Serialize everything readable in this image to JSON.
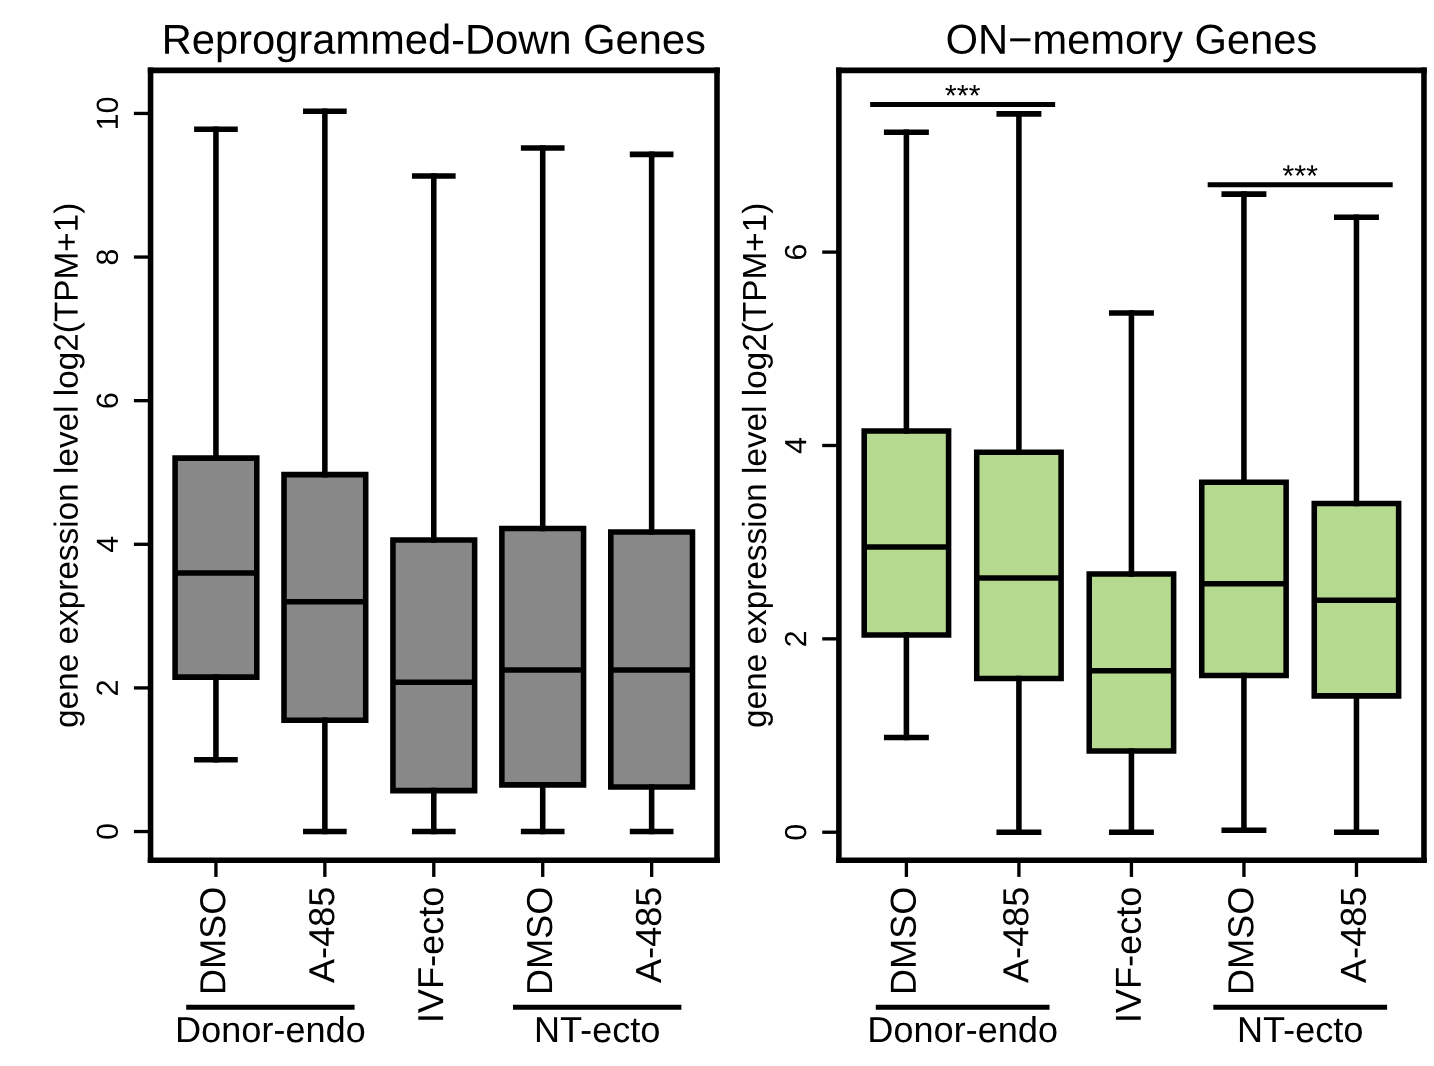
{
  "chart_data": [
    {
      "type": "box",
      "title": "Reprogrammed-Down Genes",
      "ylabel": "gene expression level log2(TPM+1)",
      "categories": [
        "DMSO",
        "A-485",
        "IVF-ecto",
        "DMSO",
        "A-485"
      ],
      "color": "#888888",
      "boxes": [
        {
          "low": 1.0,
          "q1": 2.15,
          "median": 3.6,
          "q3": 5.2,
          "high": 9.78
        },
        {
          "low": 0,
          "q1": 1.55,
          "median": 3.2,
          "q3": 4.97,
          "high": 10.03
        },
        {
          "low": 0,
          "q1": 0.57,
          "median": 2.08,
          "q3": 4.06,
          "high": 9.13
        },
        {
          "low": 0,
          "q1": 0.65,
          "median": 2.25,
          "q3": 4.22,
          "high": 9.52
        },
        {
          "low": 0,
          "q1": 0.62,
          "median": 2.25,
          "q3": 4.17,
          "high": 9.43
        }
      ],
      "ylim": [
        -0.4,
        10.6
      ],
      "yticks": [
        0,
        2,
        4,
        6,
        8,
        10
      ],
      "grid": false,
      "annotations": [
        "Donor-endo",
        "NT-ecto"
      ]
    },
    {
      "type": "box",
      "title": "ON−memory Genes",
      "ylabel": "gene expression level log2(TPM+1)",
      "categories": [
        "DMSO",
        "A-485",
        "IVF-ecto",
        "DMSO",
        "A-485"
      ],
      "color": "#b5d98f",
      "boxes": [
        {
          "low": 0.98,
          "q1": 2.04,
          "median": 2.95,
          "q3": 4.15,
          "high": 7.24
        },
        {
          "low": 0,
          "q1": 1.59,
          "median": 2.63,
          "q3": 3.93,
          "high": 7.43
        },
        {
          "low": 0,
          "q1": 0.84,
          "median": 1.67,
          "q3": 2.67,
          "high": 5.37
        },
        {
          "low": 0.02,
          "q1": 1.62,
          "median": 2.57,
          "q3": 3.62,
          "high": 6.6
        },
        {
          "low": 0,
          "q1": 1.41,
          "median": 2.4,
          "q3": 3.4,
          "high": 6.36
        }
      ],
      "ylim": [
        -0.29,
        7.88
      ],
      "yticks": [
        0,
        2,
        4,
        6
      ],
      "grid": false,
      "annotations": [
        "***",
        "***",
        "Donor-endo",
        "NT-ecto"
      ]
    }
  ]
}
